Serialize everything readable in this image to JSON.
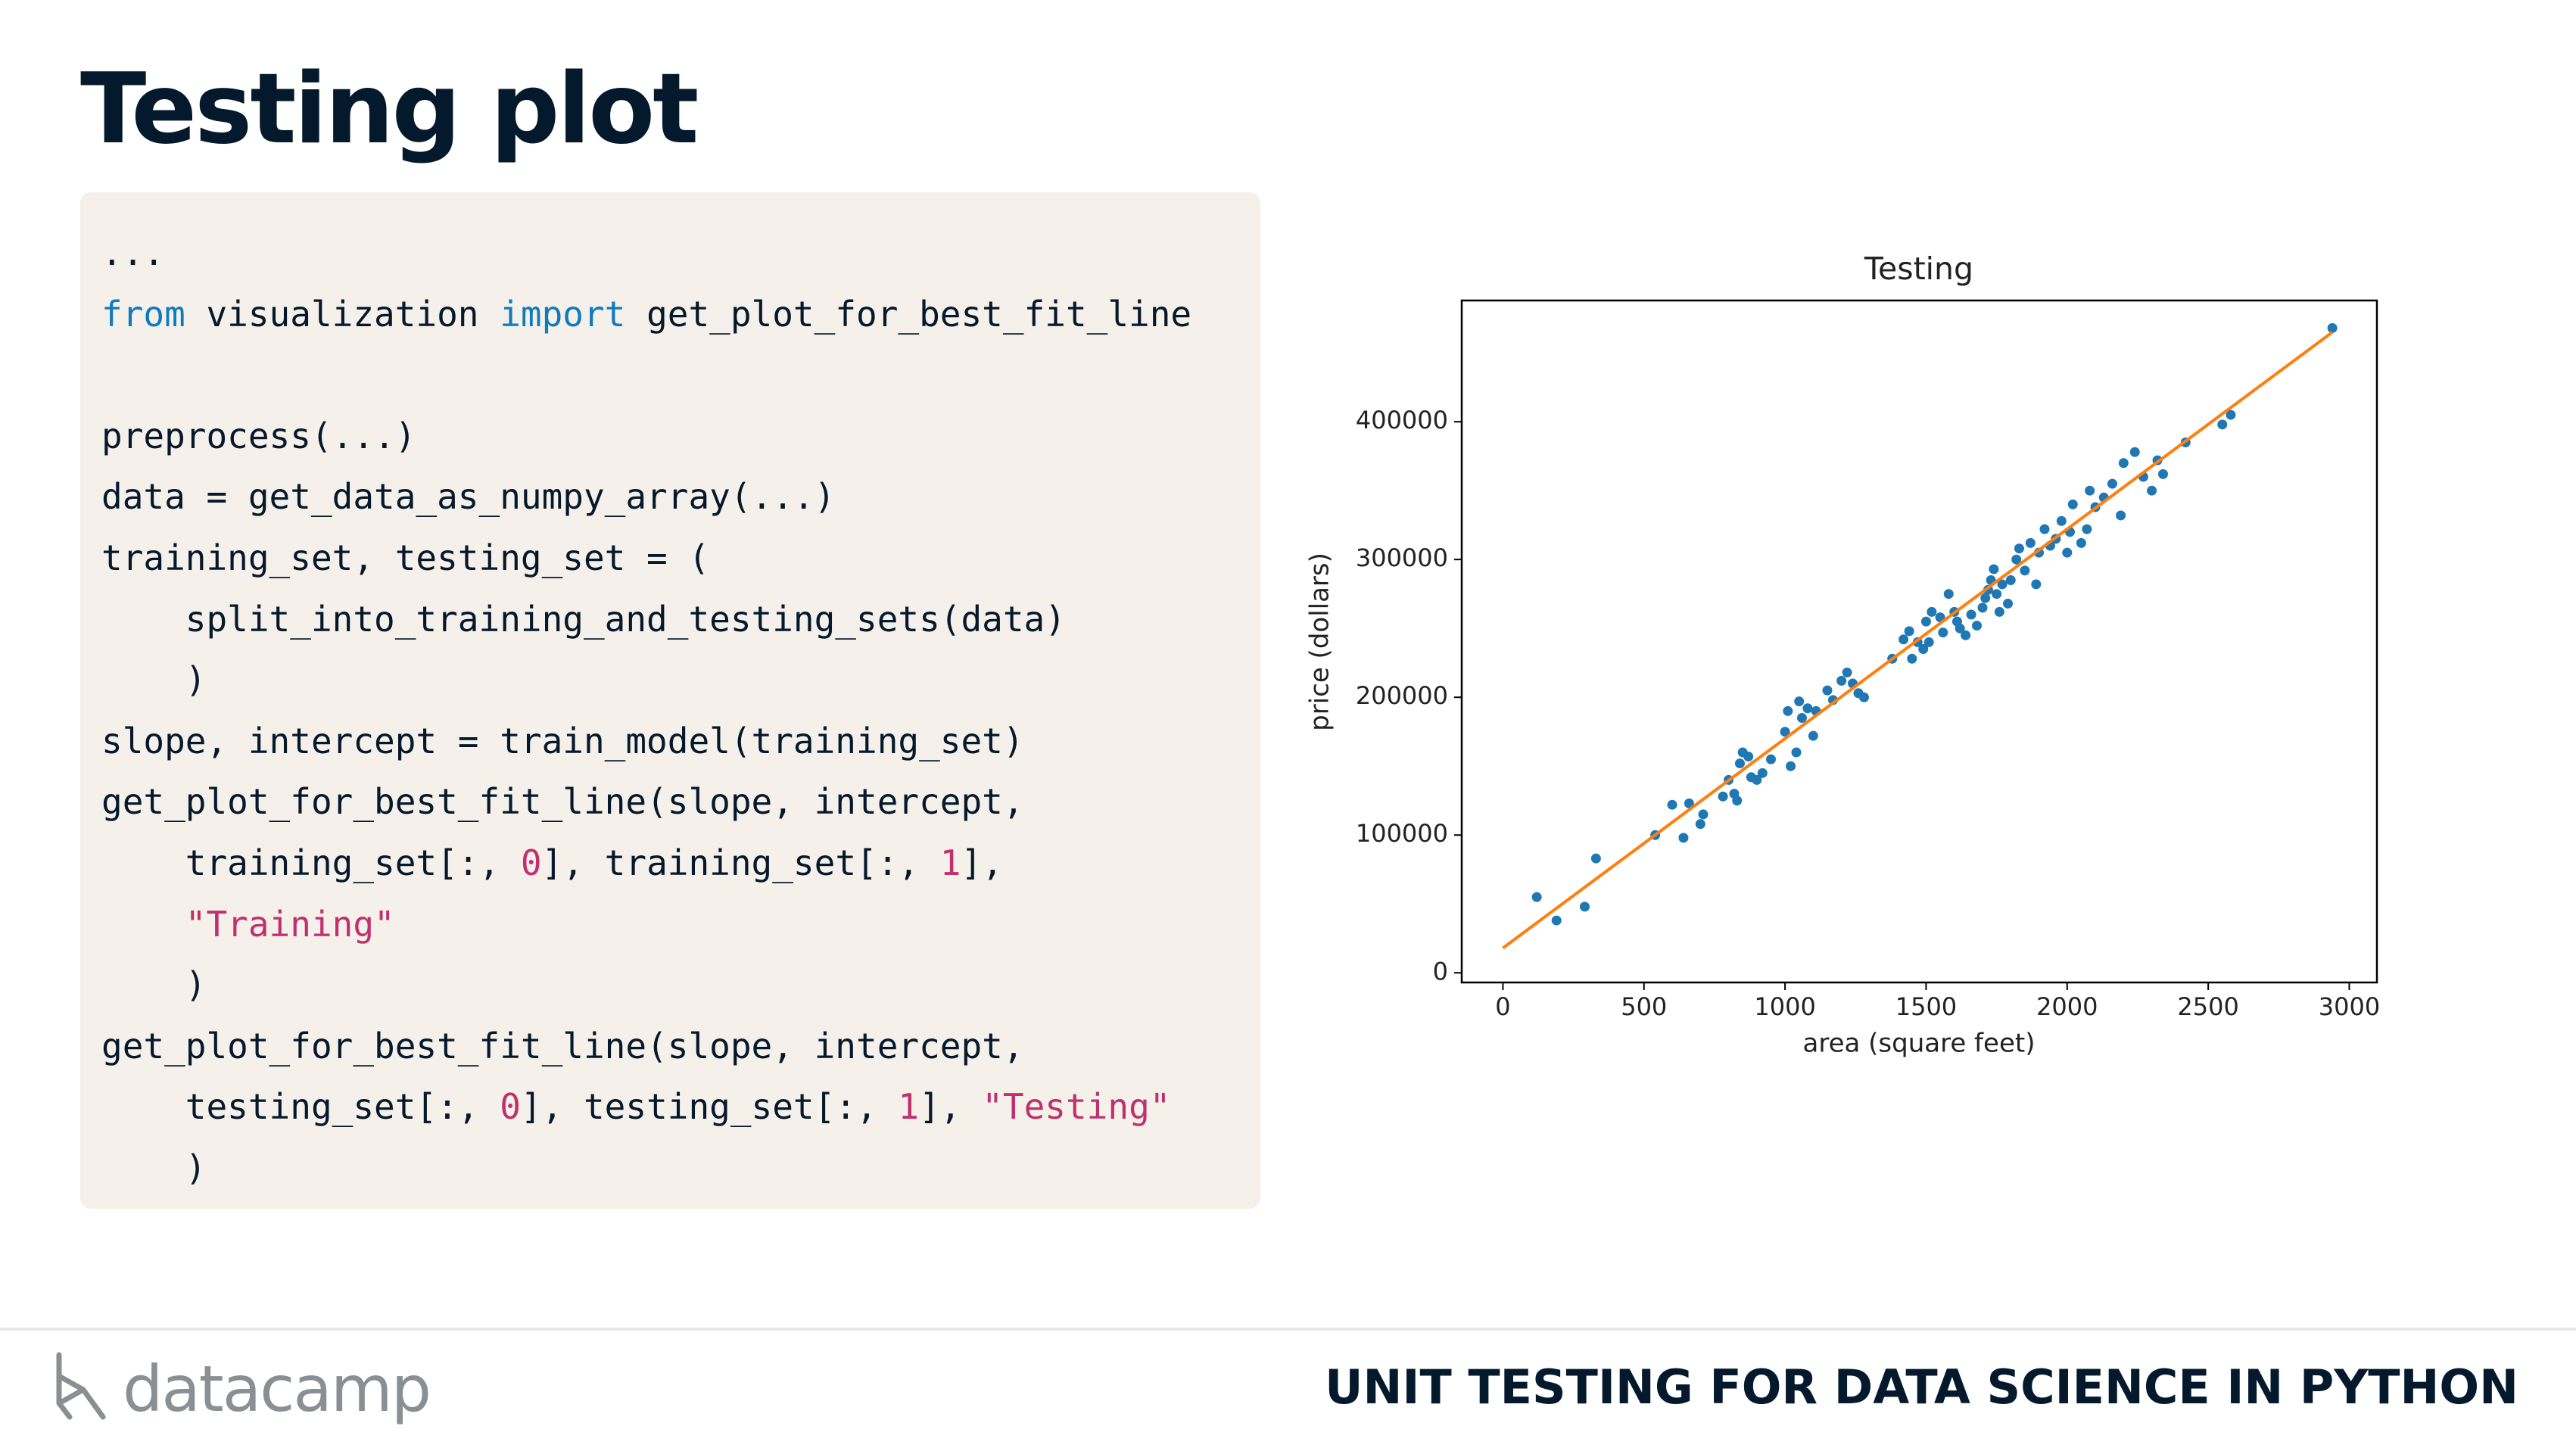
{
  "header": {
    "title": "Testing plot"
  },
  "code": {
    "lines": [
      [
        "..."
      ],
      [
        {
          "text": "from",
          "color": "#0f7bbd"
        },
        " visualization ",
        {
          "text": "import",
          "color": "#0f7bbd"
        },
        " get_plot_for_best_fit_line"
      ],
      [],
      [
        "preprocess(...)"
      ],
      [
        "data = get_data_as_numpy_array(...)"
      ],
      [
        "training_set, testing_set = ("
      ],
      [
        "    split_into_training_and_testing_sets(data)"
      ],
      [
        "    )"
      ],
      [
        "slope, intercept = train_model(training_set)"
      ],
      [
        "get_plot_for_best_fit_line(slope, intercept,"
      ],
      [
        "    training_set[:, ",
        {
          "text": "0",
          "color": "#c0306c"
        },
        "], training_set[:, ",
        {
          "text": "1",
          "color": "#c0306c"
        },
        "],"
      ],
      [
        "    ",
        {
          "text": "\"Training\"",
          "color": "#c0306c"
        }
      ],
      [
        "    )"
      ],
      [
        "get_plot_for_best_fit_line(slope, intercept,"
      ],
      [
        "    testing_set[:, ",
        {
          "text": "0",
          "color": "#c0306c"
        },
        "], testing_set[:, ",
        {
          "text": "1",
          "color": "#c0306c"
        },
        "], ",
        {
          "text": "\"Testing\"",
          "color": "#c0306c"
        }
      ],
      [
        "    )"
      ]
    ]
  },
  "chart_data": {
    "type": "scatter",
    "title": "Testing",
    "x_label": "area (square feet)",
    "y_label": "price (dollars)",
    "xlim": [
      -146,
      3098
    ],
    "ylim": [
      -7000,
      488000
    ],
    "xticks": [
      0,
      500,
      1000,
      1500,
      2000,
      2500,
      3000
    ],
    "yticks": [
      0,
      100000,
      200000,
      300000,
      400000
    ],
    "series": [
      {
        "marker": "dot",
        "color": "#1f77b4",
        "x": [
          120,
          190,
          290,
          330,
          540,
          600,
          640,
          660,
          700,
          710,
          780,
          800,
          820,
          830,
          840,
          850,
          870,
          880,
          900,
          920,
          950,
          1000,
          1010,
          1020,
          1040,
          1050,
          1060,
          1080,
          1100,
          1110,
          1150,
          1170,
          1200,
          1220,
          1240,
          1260,
          1280,
          1380,
          1420,
          1440,
          1450,
          1470,
          1490,
          1500,
          1510,
          1520,
          1550,
          1560,
          1580,
          1600,
          1610,
          1620,
          1640,
          1660,
          1680,
          1700,
          1710,
          1720,
          1730,
          1740,
          1750,
          1760,
          1770,
          1790,
          1800,
          1820,
          1830,
          1850,
          1870,
          1890,
          1900,
          1920,
          1940,
          1960,
          1980,
          2000,
          2010,
          2020,
          2050,
          2070,
          2080,
          2100,
          2130,
          2160,
          2190,
          2200,
          2240,
          2270,
          2300,
          2320,
          2340,
          2420,
          2550,
          2580,
          2940
        ],
        "values": [
          55000,
          38000,
          48000,
          83000,
          100000,
          122000,
          98000,
          123000,
          108000,
          115000,
          128000,
          140000,
          130000,
          125000,
          152000,
          160000,
          157000,
          142000,
          140000,
          145000,
          155000,
          175000,
          190000,
          150000,
          160000,
          197000,
          185000,
          192000,
          172000,
          190000,
          205000,
          198000,
          212000,
          218000,
          210000,
          203000,
          200000,
          228000,
          242000,
          248000,
          228000,
          240000,
          235000,
          255000,
          240000,
          262000,
          258000,
          247000,
          275000,
          262000,
          255000,
          250000,
          245000,
          260000,
          252000,
          265000,
          272000,
          278000,
          285000,
          293000,
          275000,
          262000,
          282000,
          268000,
          285000,
          300000,
          308000,
          292000,
          312000,
          282000,
          305000,
          322000,
          310000,
          315000,
          328000,
          305000,
          320000,
          340000,
          312000,
          322000,
          350000,
          338000,
          345000,
          355000,
          332000,
          370000,
          378000,
          360000,
          350000,
          372000,
          362000,
          385000,
          398000,
          405000,
          468000
        ]
      },
      {
        "marker": "line",
        "color": "#ff7f0e",
        "x": [
          0,
          2940
        ],
        "values": [
          18000,
          465000
        ]
      }
    ]
  },
  "footer": {
    "logo": "datacamp",
    "course": "UNIT TESTING FOR DATA SCIENCE IN PYTHON"
  }
}
